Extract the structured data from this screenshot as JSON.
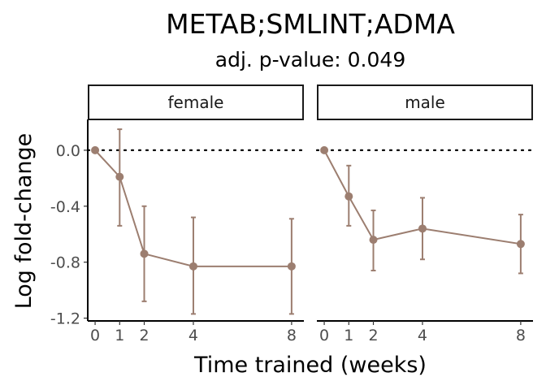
{
  "chart_data": {
    "type": "line",
    "title": "METAB;SMLINT;ADMA",
    "subtitle": "adj. p-value: 0.049",
    "xlabel": "Time trained (weeks)",
    "ylabel": "Log fold-change",
    "x_ticks": [
      0,
      1,
      2,
      4,
      8
    ],
    "y_ticks": [
      0.0,
      -0.4,
      -0.8,
      -1.2
    ],
    "y_tick_labels": [
      "0.0",
      "-0.4",
      "-0.8",
      "-1.2"
    ],
    "xlim": [
      -0.3,
      8.5
    ],
    "ylim": [
      -1.22,
      0.22
    ],
    "reference_line": {
      "y": 0,
      "style": "dotted"
    },
    "series_color": "#9C7E70",
    "grid": false,
    "panels": [
      {
        "label": "female",
        "points": [
          {
            "x": 0,
            "y": 0.0,
            "lower": 0.0,
            "upper": 0.0
          },
          {
            "x": 1,
            "y": -0.19,
            "lower": -0.54,
            "upper": 0.15
          },
          {
            "x": 2,
            "y": -0.74,
            "lower": -1.08,
            "upper": -0.4
          },
          {
            "x": 4,
            "y": -0.83,
            "lower": -1.17,
            "upper": -0.48
          },
          {
            "x": 8,
            "y": -0.83,
            "lower": -1.17,
            "upper": -0.49
          }
        ]
      },
      {
        "label": "male",
        "points": [
          {
            "x": 0,
            "y": 0.0,
            "lower": 0.0,
            "upper": 0.0
          },
          {
            "x": 1,
            "y": -0.33,
            "lower": -0.54,
            "upper": -0.11
          },
          {
            "x": 2,
            "y": -0.64,
            "lower": -0.86,
            "upper": -0.43
          },
          {
            "x": 4,
            "y": -0.56,
            "lower": -0.78,
            "upper": -0.34
          },
          {
            "x": 8,
            "y": -0.67,
            "lower": -0.88,
            "upper": -0.46
          }
        ]
      }
    ]
  }
}
